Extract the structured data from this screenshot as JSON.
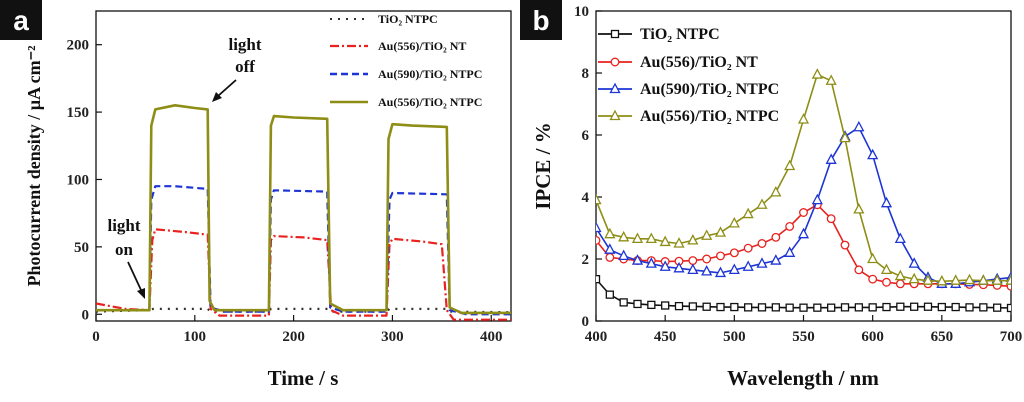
{
  "chart_data": [
    {
      "panel": "a",
      "type": "line",
      "xlabel": "Time / s",
      "ylabel": "Photocurrent density / µA cm⁻²",
      "xlim": [
        0,
        420
      ],
      "ylim": [
        -5,
        225
      ],
      "xticks": [
        0,
        100,
        200,
        300,
        400
      ],
      "yticks": [
        0,
        50,
        100,
        150,
        200
      ],
      "annotations": {
        "light_on": [
          "light",
          "on"
        ],
        "light_off": [
          "light",
          "off"
        ]
      },
      "series": [
        {
          "name": "TiO₂ NTPC",
          "color": "#333333",
          "style": "dotted",
          "x": [
            0,
            52,
            58,
            113,
            116,
            175,
            177,
            235,
            238,
            294,
            297,
            354,
            357,
            420
          ],
          "y": [
            2,
            3,
            4,
            4,
            2,
            2,
            4,
            4,
            2,
            2,
            4,
            4,
            2,
            1.5
          ]
        },
        {
          "name": "Au(556)/TiO₂ NT",
          "color": "#e8231f",
          "style": "dashdot",
          "x": [
            0,
            30,
            54,
            57,
            60,
            90,
            113,
            116,
            125,
            175,
            177,
            180,
            210,
            234,
            238,
            250,
            294,
            297,
            300,
            330,
            350,
            355,
            362,
            420
          ],
          "y": [
            8,
            4,
            3,
            55,
            63,
            61,
            59,
            4,
            -1,
            -1,
            55,
            58,
            57,
            55,
            3,
            -1,
            -1,
            52,
            56,
            54,
            52,
            3,
            -4,
            -4
          ]
        },
        {
          "name": "Au(590)/TiO₂ NTPC",
          "color": "#1d35d4",
          "style": "dashed",
          "x": [
            0,
            54,
            56,
            60,
            80,
            113,
            116,
            130,
            175,
            177,
            180,
            234,
            237,
            250,
            294,
            297,
            300,
            355,
            358,
            375,
            420
          ],
          "y": [
            3,
            3,
            85,
            95,
            95,
            93,
            5,
            2,
            2,
            85,
            92,
            91,
            5,
            2,
            2,
            85,
            90,
            89,
            3,
            0,
            0
          ]
        },
        {
          "name": "Au(556)/TiO₂ NTPC",
          "color": "#8e8e16",
          "style": "solid",
          "x": [
            0,
            54,
            56,
            60,
            80,
            100,
            113,
            115,
            120,
            175,
            177,
            180,
            200,
            234,
            237,
            250,
            294,
            296,
            300,
            320,
            355,
            358,
            370,
            420
          ],
          "y": [
            3,
            3,
            140,
            152,
            155,
            153,
            152,
            10,
            3,
            3,
            140,
            147,
            146,
            145,
            8,
            3,
            3,
            130,
            141,
            140,
            139,
            5,
            1,
            1
          ]
        }
      ]
    },
    {
      "panel": "b",
      "type": "line",
      "xlabel": "Wavelength / nm",
      "ylabel": "IPCE / %",
      "xlim": [
        400,
        700
      ],
      "ylim": [
        0,
        10
      ],
      "xticks": [
        400,
        450,
        500,
        550,
        600,
        650,
        700
      ],
      "yticks": [
        0,
        2,
        4,
        6,
        8,
        10
      ],
      "series": [
        {
          "name": "TiO₂ NTPC",
          "color": "#111111",
          "marker": "square",
          "x": [
            400,
            410,
            420,
            430,
            440,
            450,
            460,
            470,
            480,
            490,
            500,
            510,
            520,
            530,
            540,
            550,
            560,
            570,
            580,
            590,
            600,
            610,
            620,
            630,
            640,
            650,
            660,
            670,
            680,
            690,
            700
          ],
          "y": [
            1.35,
            0.85,
            0.6,
            0.55,
            0.52,
            0.5,
            0.48,
            0.47,
            0.46,
            0.45,
            0.45,
            0.44,
            0.44,
            0.44,
            0.43,
            0.43,
            0.43,
            0.43,
            0.44,
            0.44,
            0.44,
            0.45,
            0.46,
            0.46,
            0.46,
            0.45,
            0.45,
            0.44,
            0.44,
            0.43,
            0.42
          ]
        },
        {
          "name": "Au(556)/TiO₂ NT",
          "color": "#e8231f",
          "marker": "circle",
          "x": [
            400,
            410,
            420,
            430,
            440,
            450,
            460,
            470,
            480,
            490,
            500,
            510,
            520,
            530,
            540,
            550,
            560,
            570,
            580,
            590,
            600,
            610,
            620,
            630,
            640,
            650,
            660,
            670,
            680,
            690,
            700
          ],
          "y": [
            2.6,
            2.05,
            2.0,
            1.95,
            1.95,
            1.92,
            1.93,
            1.95,
            2.0,
            2.1,
            2.2,
            2.35,
            2.5,
            2.7,
            3.05,
            3.5,
            3.75,
            3.3,
            2.45,
            1.65,
            1.35,
            1.25,
            1.2,
            1.2,
            1.2,
            1.2,
            1.2,
            1.18,
            1.17,
            1.15,
            1.12
          ]
        },
        {
          "name": "Au(590)/TiO₂ NTPC",
          "color": "#1d35d4",
          "marker": "triangle",
          "x": [
            400,
            410,
            420,
            430,
            440,
            450,
            460,
            470,
            480,
            490,
            500,
            510,
            520,
            530,
            540,
            550,
            560,
            570,
            580,
            590,
            600,
            610,
            620,
            630,
            640,
            650,
            660,
            670,
            680,
            690,
            700
          ],
          "y": [
            3.0,
            2.3,
            2.1,
            1.95,
            1.85,
            1.75,
            1.7,
            1.65,
            1.6,
            1.55,
            1.65,
            1.75,
            1.85,
            1.95,
            2.2,
            2.8,
            3.9,
            5.2,
            5.95,
            6.25,
            5.35,
            3.8,
            2.65,
            1.85,
            1.4,
            1.2,
            1.2,
            1.25,
            1.3,
            1.35,
            1.4
          ]
        },
        {
          "name": "Au(556)/TiO₂ NTPC",
          "color": "#8e8e16",
          "marker": "triangle",
          "x": [
            400,
            410,
            420,
            430,
            440,
            450,
            460,
            470,
            480,
            490,
            500,
            510,
            520,
            530,
            540,
            550,
            560,
            570,
            580,
            590,
            600,
            610,
            620,
            630,
            640,
            650,
            660,
            670,
            680,
            690,
            700
          ],
          "y": [
            3.9,
            2.8,
            2.7,
            2.65,
            2.65,
            2.55,
            2.5,
            2.6,
            2.75,
            2.85,
            3.15,
            3.45,
            3.75,
            4.15,
            5.0,
            6.5,
            7.95,
            7.75,
            5.9,
            3.6,
            2.0,
            1.65,
            1.45,
            1.35,
            1.3,
            1.28,
            1.3,
            1.32,
            1.3,
            1.3,
            1.3
          ]
        }
      ]
    }
  ]
}
